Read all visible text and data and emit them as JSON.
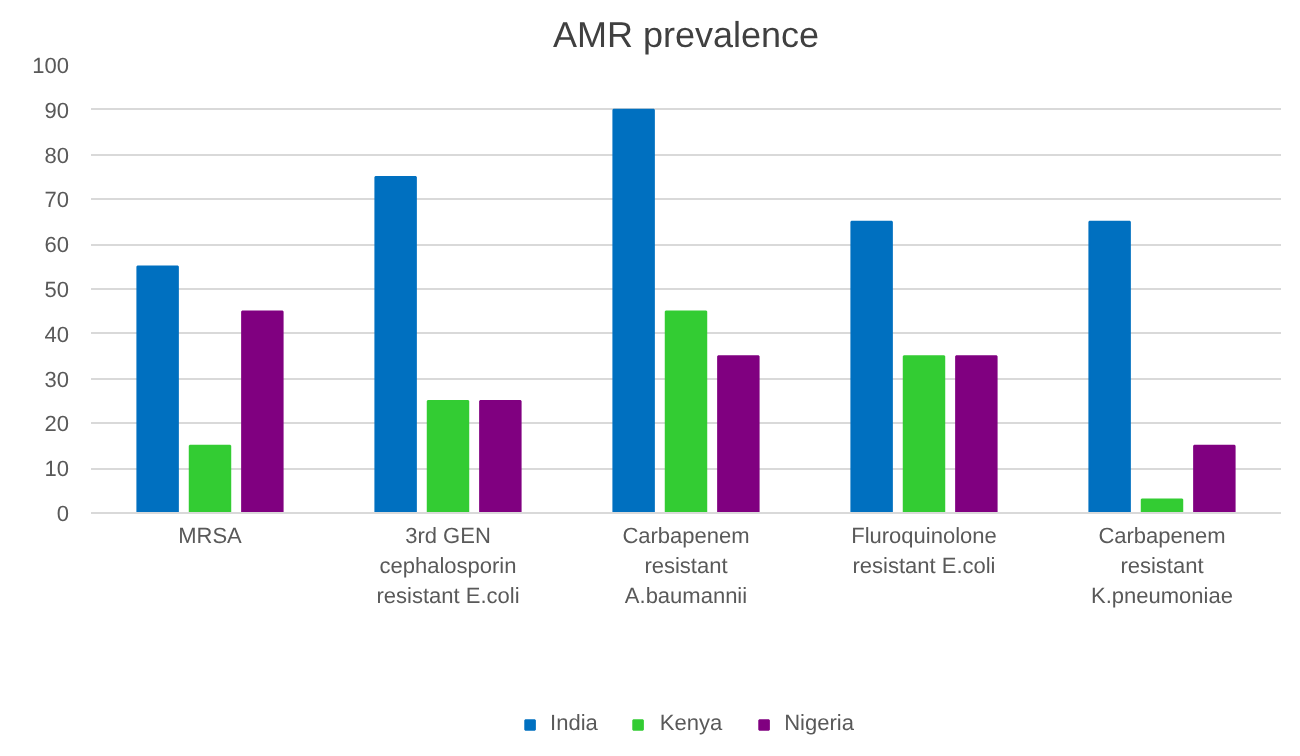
{
  "chart_data": {
    "type": "bar",
    "title": "AMR prevalence",
    "categories": [
      "MRSA",
      "3rd GEN cephalosporin resistant E.coli",
      "Carbapenem resistant A.baumannii",
      "Fluroquinolone resistant E.coli",
      "Carbapenem resistant K.pneumoniae"
    ],
    "series": [
      {
        "name": "India",
        "color": "#0070c0",
        "values": [
          55,
          75,
          90,
          65,
          65
        ]
      },
      {
        "name": "Kenya",
        "color": "#33cc33",
        "values": [
          15,
          25,
          45,
          35,
          3
        ]
      },
      {
        "name": "Nigeria",
        "color": "#800080",
        "values": [
          45,
          25,
          35,
          35,
          15
        ]
      }
    ],
    "ylim": [
      0,
      100
    ],
    "yticks": [
      0,
      10,
      20,
      30,
      40,
      50,
      60,
      70,
      80,
      90,
      100
    ],
    "grid": "y",
    "legend": "bottom"
  }
}
